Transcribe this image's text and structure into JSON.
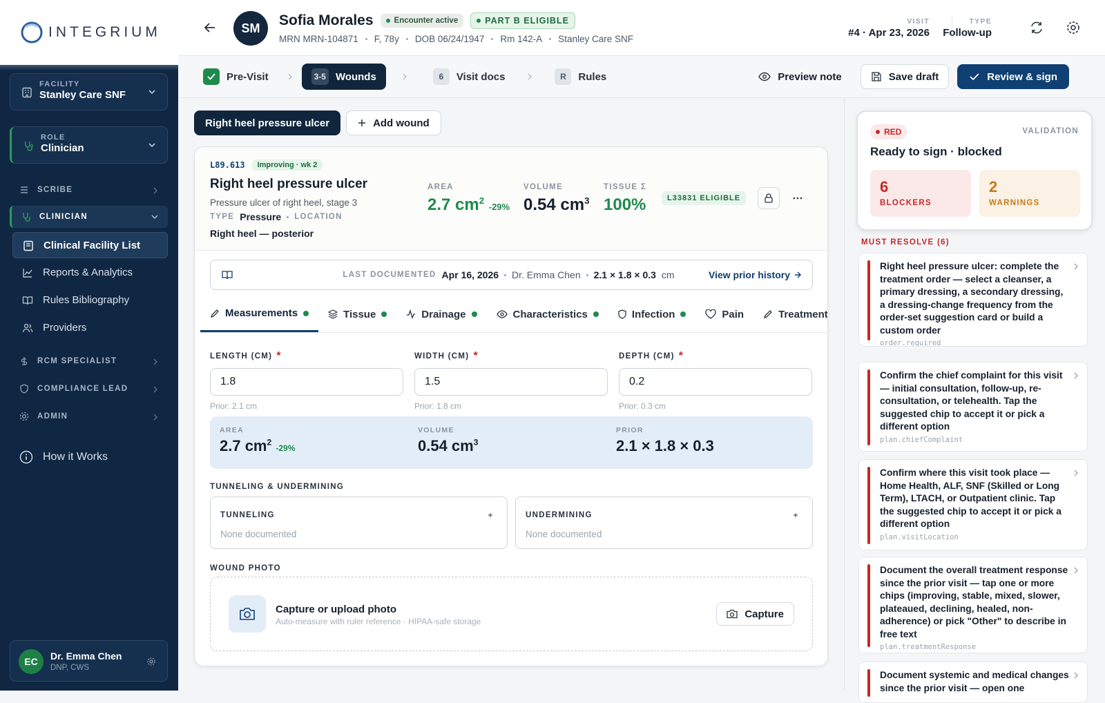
{
  "brand": "INTEGRIUM",
  "sidebar": {
    "facility": {
      "label": "FACILITY",
      "value": "Stanley Care SNF"
    },
    "role": {
      "label": "ROLE",
      "value": "Clinician"
    },
    "sections": [
      {
        "label": "SCRIBE"
      },
      {
        "label": "CLINICIAN",
        "items": [
          "Clinical Facility List",
          "Reports & Analytics",
          "Rules Bibliography",
          "Providers"
        ]
      },
      {
        "label": "RCM SPECIALIST"
      },
      {
        "label": "COMPLIANCE LEAD"
      },
      {
        "label": "ADMIN"
      }
    ],
    "help": "How it Works",
    "user": {
      "initials": "EC",
      "name": "Dr. Emma Chen",
      "credentials": "DNP, CWS"
    }
  },
  "header": {
    "initials": "SM",
    "name": "Sofia Morales",
    "badges": [
      "Encounter active",
      "PART B ELIGIBLE"
    ],
    "meta": [
      "MRN MRN-104871",
      "F, 78y",
      "DOB 06/24/1947",
      "Rm 142-A",
      "Stanley Care SNF"
    ],
    "visit": {
      "label": "VISIT",
      "value": "#4 · Apr 23, 2026"
    },
    "type": {
      "label": "TYPE",
      "value": "Follow-up"
    }
  },
  "steps": [
    {
      "label": "Pre-Visit"
    },
    {
      "badge": "3-5",
      "label": "Wounds"
    },
    {
      "badge": "6",
      "label": "Visit docs"
    },
    {
      "badge": "R",
      "label": "Rules"
    }
  ],
  "actions": [
    "Preview note",
    "Save draft",
    "Review & sign"
  ],
  "wound_tabs": [
    "Right heel pressure ulcer",
    "Add wound"
  ],
  "wound": {
    "code": "L89.613",
    "status": "Improving · wk 2",
    "title": "Right heel pressure ulcer",
    "description": "Pressure ulcer of right heel, stage 3",
    "type_label": "TYPE",
    "type": "Pressure",
    "location_label": "LOCATION",
    "location": "Right heel — posterior",
    "metrics": [
      {
        "label": "AREA",
        "value": "2.7 cm",
        "sup": "2",
        "delta": "-29%"
      },
      {
        "label": "VOLUME",
        "value": "0.54 cm",
        "sup": "3"
      },
      {
        "label": "TISSUE Σ",
        "value": "100%"
      }
    ],
    "eligibility": "L33831 ELIGIBLE"
  },
  "last_documented": {
    "label": "LAST DOCUMENTED",
    "date": "Apr 16, 2026",
    "clinician": "Dr. Emma Chen",
    "dims": "2.1 × 1.8 × 0.3",
    "unit": "cm",
    "link": "View prior history"
  },
  "tabs": [
    "Measurements",
    "Tissue",
    "Drainage",
    "Characteristics",
    "Infection",
    "Pain",
    "Treatment"
  ],
  "fields": [
    {
      "label": "LENGTH (CM)",
      "required": "*",
      "value": "1.8",
      "prior": "Prior: 2.1 cm"
    },
    {
      "label": "WIDTH (CM)",
      "required": "*",
      "value": "1.5",
      "prior": "Prior: 1.8 cm"
    },
    {
      "label": "DEPTH (CM)",
      "required": "*",
      "value": "0.2",
      "prior": "Prior: 0.3 cm"
    }
  ],
  "summary": [
    {
      "label": "AREA",
      "value": "2.7 cm",
      "sup": "2",
      "delta": "-29%"
    },
    {
      "label": "VOLUME",
      "value": "0.54 cm",
      "sup": "3"
    },
    {
      "label": "PRIOR",
      "value": "2.1 × 1.8 × 0.3"
    }
  ],
  "tunneling": {
    "title": "TUNNELING & UNDERMINING",
    "boxes": [
      {
        "label": "TUNNELING",
        "value": "None documented"
      },
      {
        "label": "UNDERMINING",
        "value": "None documented"
      }
    ]
  },
  "photo": {
    "title": "WOUND PHOTO",
    "heading": "Capture or upload photo",
    "sub": "Auto-measure with ruler reference · HIPAA-safe storage",
    "button": "Capture"
  },
  "validation": {
    "status": "RED",
    "label": "VALIDATION",
    "title": "Ready to sign · blocked",
    "blockers": {
      "count": "6",
      "label": "BLOCKERS"
    },
    "warnings": {
      "count": "2",
      "label": "WARNINGS"
    },
    "list_title": "MUST RESOLVE (6)",
    "items": [
      {
        "text": "Right heel pressure ulcer: complete the treatment order — select a cleanser, a primary dressing, a secondary dressing, a dressing-change frequency from the order-set suggestion card or build a custom order",
        "key": "order.required"
      },
      {
        "text": "Confirm the chief complaint for this visit — initial consultation, follow-up, re-consultation, or telehealth. Tap the suggested chip to accept it or pick a different option",
        "key": "plan.chiefComplaint"
      },
      {
        "text": "Confirm where this visit took place — Home Health, ALF, SNF (Skilled or Long Term), LTACH, or Outpatient clinic. Tap the suggested chip to accept it or pick a different option",
        "key": "plan.visitLocation"
      },
      {
        "text": "Document the overall treatment response since the prior visit — tap one or more chips (improving, stable, mixed, slower, plateaued, declining, healed, non-adherence) or pick \"Other\" to describe in free text",
        "key": "plan.treatmentResponse"
      },
      {
        "text": "Document systemic and medical changes since the prior visit — open one"
      }
    ]
  }
}
